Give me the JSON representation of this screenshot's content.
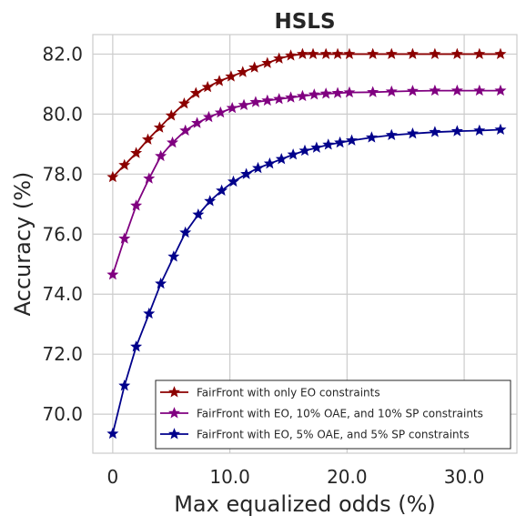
{
  "chart_data": {
    "type": "line",
    "title": "HSLS",
    "xlabel": "Max equalized odds (%)",
    "ylabel": "Accuracy (%)",
    "xlim": [
      -1.7,
      34.5
    ],
    "ylim": [
      68.7,
      82.65
    ],
    "xticks": [
      0,
      10,
      20,
      30
    ],
    "xtick_labels": [
      "0",
      "10.0",
      "20.0",
      "30.0"
    ],
    "yticks": [
      70,
      72,
      74,
      76,
      78,
      80,
      82
    ],
    "ytick_labels": [
      "70.0",
      "72.0",
      "74.0",
      "76.0",
      "78.0",
      "80.0",
      "82.0"
    ],
    "grid": true,
    "legend_position": "lower-right",
    "marker": "star",
    "series": [
      {
        "name": "FairFront with only EO constraints",
        "color": "#8b0000",
        "x": [
          0.0,
          1.0,
          2.0,
          3.0,
          4.0,
          5.0,
          6.1,
          7.1,
          8.1,
          9.1,
          10.1,
          11.1,
          12.1,
          13.2,
          14.2,
          15.2,
          16.2,
          17.1,
          18.2,
          19.2,
          20.2,
          22.2,
          23.8,
          25.6,
          27.5,
          29.4,
          31.3,
          33.1
        ],
        "y": [
          77.9,
          78.3,
          78.7,
          79.15,
          79.55,
          79.95,
          80.35,
          80.7,
          80.9,
          81.1,
          81.25,
          81.4,
          81.55,
          81.7,
          81.85,
          81.95,
          82.0,
          82.0,
          82.0,
          82.0,
          82.0,
          82.0,
          82.0,
          82.0,
          82.0,
          82.0,
          82.0,
          82.0
        ]
      },
      {
        "name": "FairFront with EO, 10% OAE, and 10% SP constraints",
        "color": "#800080",
        "x": [
          0.0,
          1.0,
          2.0,
          3.1,
          4.1,
          5.1,
          6.2,
          7.2,
          8.2,
          9.2,
          10.2,
          11.2,
          12.2,
          13.2,
          14.2,
          15.2,
          16.2,
          17.2,
          18.2,
          19.2,
          20.2,
          22.2,
          23.8,
          25.6,
          27.5,
          29.4,
          31.3,
          33.1
        ],
        "y": [
          74.65,
          75.85,
          76.95,
          77.85,
          78.6,
          79.05,
          79.45,
          79.7,
          79.9,
          80.05,
          80.2,
          80.3,
          80.4,
          80.45,
          80.5,
          80.55,
          80.6,
          80.65,
          80.68,
          80.7,
          80.72,
          80.73,
          80.75,
          80.77,
          80.78,
          80.78,
          80.78,
          80.78
        ]
      },
      {
        "name": "FairFront with EO, 5% OAE, and 5% SP constraints",
        "color": "#00008b",
        "x": [
          0.0,
          1.0,
          2.0,
          3.1,
          4.1,
          5.2,
          6.2,
          7.3,
          8.3,
          9.3,
          10.3,
          11.4,
          12.4,
          13.4,
          14.4,
          15.4,
          16.4,
          17.4,
          18.4,
          19.4,
          20.4,
          22.1,
          23.8,
          25.6,
          27.5,
          29.4,
          31.3,
          33.1
        ],
        "y": [
          69.35,
          70.95,
          72.25,
          73.35,
          74.35,
          75.25,
          76.05,
          76.65,
          77.1,
          77.45,
          77.75,
          78.0,
          78.2,
          78.35,
          78.5,
          78.65,
          78.78,
          78.88,
          78.98,
          79.05,
          79.12,
          79.22,
          79.3,
          79.35,
          79.4,
          79.43,
          79.45,
          79.48
        ]
      }
    ]
  }
}
